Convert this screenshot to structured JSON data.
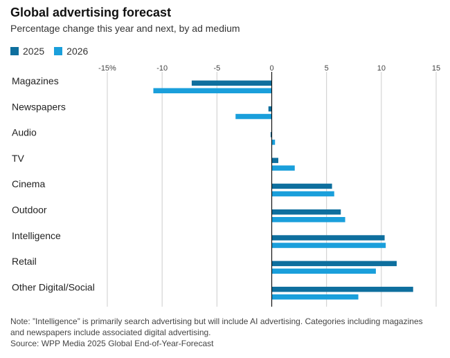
{
  "title": "Global advertising forecast",
  "subtitle": "Percentage change this year and next, by ad medium",
  "note": "Note: ”Intelligence” is primarily search advertising but will include AI advertising. Categories including magazines and newspapers include associated digital advertising.",
  "source": "Source: WPP Media 2025 Global End-of-Year-Forecast",
  "colors": {
    "s2025": "#0e6f9e",
    "s2026": "#1a9fdb",
    "grid": "#cccccc",
    "axis": "#111111"
  },
  "chart_data": {
    "type": "bar",
    "orientation": "horizontal",
    "categories": [
      "Magazines",
      "Newspapers",
      "Audio",
      "TV",
      "Cinema",
      "Outdoor",
      "Intelligence",
      "Retail",
      "Other Digital/Social"
    ],
    "series": [
      {
        "name": "2025",
        "values": [
          -7.3,
          -0.3,
          -0.1,
          0.6,
          5.5,
          6.3,
          10.3,
          11.4,
          12.9
        ]
      },
      {
        "name": "2026",
        "values": [
          -10.8,
          -3.3,
          0.3,
          2.1,
          5.7,
          6.7,
          10.4,
          9.5,
          7.9
        ]
      }
    ],
    "xlim": [
      -15,
      15
    ],
    "ticks": [
      -15,
      -10,
      -5,
      0,
      5,
      10,
      15
    ],
    "tick_labels": [
      "-15%",
      "-10",
      "-5",
      "0",
      "5",
      "10",
      "15"
    ],
    "grid": true,
    "legend": "top-left"
  }
}
